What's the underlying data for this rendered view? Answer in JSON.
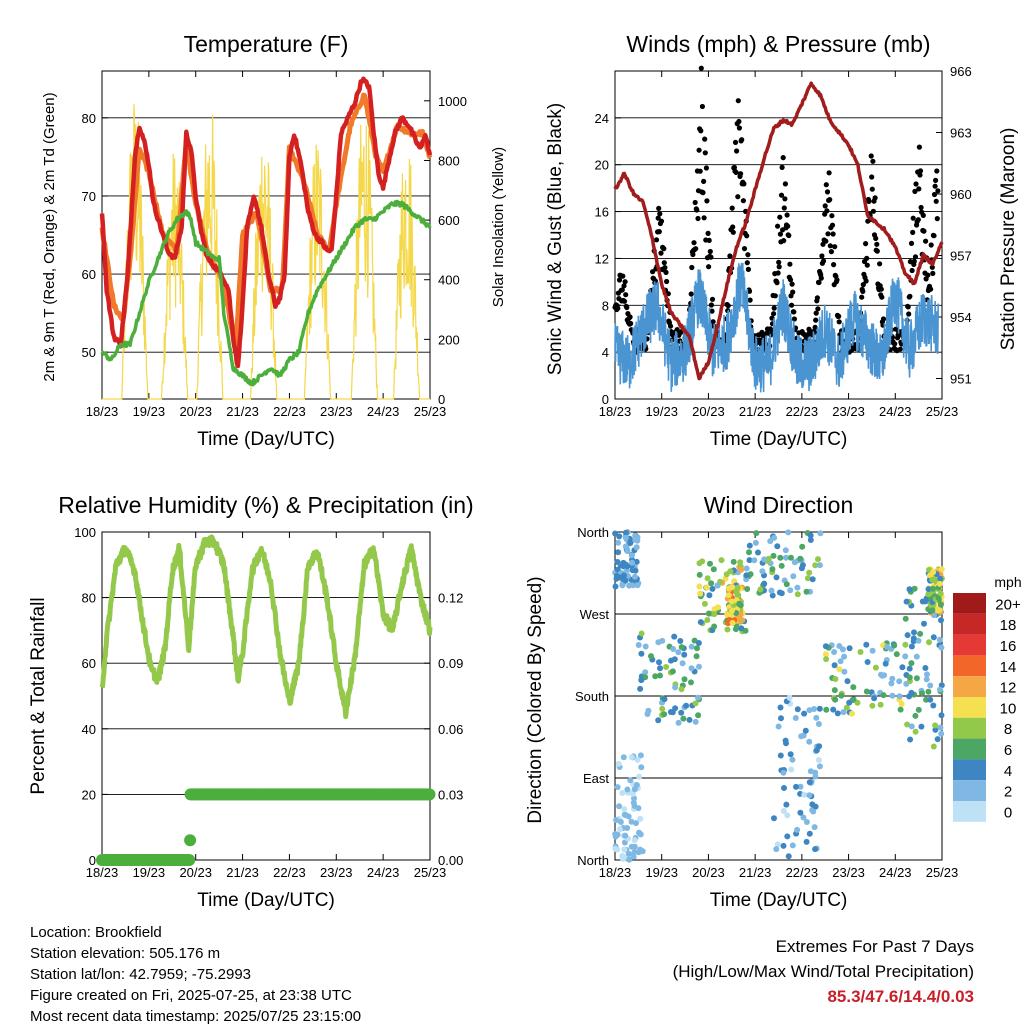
{
  "chart_data": [
    {
      "type": "line",
      "title": "Temperature (F)",
      "xlabel": "Time (Day/UTC)",
      "ylabel": "2m & 9m T (Red, Orange) & 2m Td (Green)",
      "y2label": "Solar Insolation (Yellow)",
      "x_ticks": [
        "18/23",
        "19/23",
        "20/23",
        "21/23",
        "22/23",
        "23/23",
        "24/23",
        "25/23"
      ],
      "ylim": [
        44,
        86
      ],
      "y_ticks": [
        50,
        60,
        70,
        80
      ],
      "y2lim": [
        0,
        1100
      ],
      "y2_ticks": [
        0,
        200,
        400,
        600,
        800,
        1000
      ],
      "grid": true,
      "series": [
        {
          "role": "2m T",
          "color": "#d42020",
          "axis": "left",
          "x": [
            0,
            0.1,
            0.25,
            0.4,
            0.55,
            0.7,
            0.8,
            0.9,
            1.0,
            1.1,
            1.25,
            1.4,
            1.55,
            1.7,
            1.8,
            1.9,
            2.0,
            2.1,
            2.25,
            2.4,
            2.55,
            2.7,
            2.8,
            2.9,
            3.0,
            3.1,
            3.25,
            3.4,
            3.55,
            3.7,
            3.8,
            3.9,
            4.0,
            4.1,
            4.25,
            4.4,
            4.55,
            4.7,
            4.8,
            4.9,
            5.0,
            5.1,
            5.25,
            5.4,
            5.55,
            5.7,
            5.8,
            5.9,
            6.0,
            6.1,
            6.25,
            6.4,
            6.55,
            6.7,
            6.8,
            6.9,
            7.0
          ],
          "y": [
            68,
            58,
            52,
            51,
            60,
            75,
            79,
            77,
            74,
            69,
            66,
            63,
            62,
            66,
            78,
            76,
            70,
            66,
            62,
            61,
            60,
            58,
            52,
            48,
            56,
            66,
            70,
            66,
            60,
            56,
            57,
            60,
            75,
            78,
            74,
            68,
            65,
            64,
            63,
            63,
            70,
            78,
            80,
            82,
            85,
            84,
            78,
            73,
            71,
            74,
            78,
            80,
            79,
            77,
            76,
            78,
            75
          ]
        },
        {
          "role": "9m T",
          "color": "#f07a2a",
          "axis": "left",
          "x": [
            0,
            0.25,
            0.45,
            0.6,
            0.8,
            1.0,
            1.3,
            1.6,
            1.8,
            2.0,
            2.3,
            2.6,
            2.85,
            3.0,
            3.3,
            3.6,
            3.85,
            4.0,
            4.3,
            4.6,
            4.85,
            5.0,
            5.3,
            5.6,
            5.85,
            6.0,
            6.3,
            6.6,
            6.85,
            7.0
          ],
          "y": [
            66,
            56,
            54,
            62,
            76,
            73,
            65,
            63,
            77,
            69,
            62,
            59,
            50,
            65,
            68,
            58,
            58,
            76,
            72,
            65,
            63,
            69,
            79,
            83,
            75,
            73,
            79,
            78,
            78,
            75
          ]
        },
        {
          "role": "2m Td",
          "color": "#4caf3c",
          "axis": "left",
          "x": [
            0,
            0.2,
            0.4,
            0.6,
            0.8,
            1.0,
            1.2,
            1.4,
            1.6,
            1.8,
            1.9,
            2.0,
            2.2,
            2.4,
            2.5,
            2.6,
            2.8,
            3.0,
            3.2,
            3.4,
            3.6,
            3.8,
            4.0,
            4.2,
            4.4,
            4.6,
            4.8,
            5.0,
            5.2,
            5.4,
            5.6,
            5.8,
            6.0,
            6.2,
            6.4,
            6.6,
            6.8,
            7.0
          ],
          "y": [
            50,
            49,
            51,
            51,
            55,
            59,
            62,
            65,
            67,
            68,
            67,
            64,
            63,
            62,
            62,
            55,
            48,
            47,
            46,
            47,
            48,
            47,
            49,
            50,
            55,
            58,
            60,
            62,
            64,
            66,
            67,
            67,
            68,
            69,
            69,
            68,
            67,
            66
          ]
        },
        {
          "role": "Solar Insolation",
          "color": "#f5d84a",
          "axis": "right",
          "peaks_x": [
            0.7,
            1.55,
            2.3,
            3.45,
            4.6,
            5.6,
            6.5
          ],
          "peaks_y": [
            1050,
            860,
            1030,
            980,
            920,
            1040,
            950
          ]
        }
      ]
    },
    {
      "type": "line",
      "title": "Winds (mph) & Pressure (mb)",
      "xlabel": "Time (Day/UTC)",
      "ylabel": "Sonic Wind & Gust (Blue, Black)",
      "y2label": "Station Pressure (Maroon)",
      "x_ticks": [
        "18/23",
        "19/23",
        "20/23",
        "21/23",
        "22/23",
        "23/23",
        "24/23",
        "25/23"
      ],
      "ylim": [
        0,
        28
      ],
      "y_ticks": [
        0,
        4,
        8,
        12,
        16,
        20,
        24
      ],
      "y2lim": [
        950,
        966
      ],
      "y2_ticks": [
        951,
        954,
        957,
        960,
        963,
        966
      ],
      "grid": true,
      "series": [
        {
          "role": "Station Pressure",
          "color": "#a11c1c",
          "axis": "right",
          "x": [
            0,
            0.2,
            0.4,
            0.6,
            0.8,
            1.0,
            1.2,
            1.4,
            1.6,
            1.8,
            2.0,
            2.2,
            2.4,
            2.6,
            2.8,
            3.0,
            3.2,
            3.4,
            3.6,
            3.8,
            4.0,
            4.2,
            4.4,
            4.6,
            4.8,
            5.0,
            5.2,
            5.4,
            5.6,
            5.8,
            6.0,
            6.2,
            6.4,
            6.6,
            6.8,
            7.0
          ],
          "y": [
            960.2,
            961.0,
            960.0,
            959.6,
            957.8,
            955.6,
            954.2,
            953.6,
            953.0,
            951.0,
            951.8,
            953.6,
            955.6,
            957.4,
            958.6,
            960.2,
            961.8,
            963.2,
            963.6,
            963.4,
            964.4,
            965.4,
            964.8,
            963.6,
            963.0,
            962.4,
            961.4,
            959.0,
            958.6,
            958.2,
            957.4,
            956.2,
            955.6,
            957.0,
            956.6,
            957.6
          ]
        },
        {
          "role": "Wind",
          "color": "#4b94d2",
          "axis": "left",
          "x": [
            0,
            0.3,
            0.6,
            0.9,
            1.2,
            1.5,
            1.8,
            2.1,
            2.4,
            2.7,
            3.0,
            3.3,
            3.6,
            3.9,
            4.2,
            4.5,
            4.8,
            5.1,
            5.4,
            5.7,
            6.0,
            6.3,
            6.6,
            6.9
          ],
          "y": [
            4,
            3,
            6,
            8,
            3,
            4,
            9,
            4,
            5,
            10,
            3,
            3,
            8,
            3,
            3,
            6,
            3,
            7,
            5,
            3,
            9,
            4,
            7,
            6
          ]
        },
        {
          "role": "Gust",
          "color": "#000000",
          "axis": "left",
          "peaks_x": [
            0.15,
            0.95,
            1.85,
            2.65,
            3.6,
            4.55,
            5.5,
            6.5,
            6.9
          ],
          "peaks_y": [
            8,
            14,
            25,
            25,
            18,
            19,
            18,
            19,
            17
          ]
        }
      ]
    },
    {
      "type": "line",
      "title": "Relative Humidity (%) & Precipitation (in)",
      "xlabel": "Time (Day/UTC)",
      "ylabel": "Percent & Total Rainfall",
      "x_ticks": [
        "18/23",
        "19/23",
        "20/23",
        "21/23",
        "22/23",
        "23/23",
        "24/23",
        "25/23"
      ],
      "ylim": [
        0,
        100
      ],
      "y_ticks": [
        0,
        20,
        40,
        60,
        80,
        100
      ],
      "y2lim": [
        0,
        0.15
      ],
      "y2_ticks": [
        "0.00",
        "0.03",
        "0.06",
        "0.09",
        "0.12"
      ],
      "grid": true,
      "series": [
        {
          "role": "Relative Humidity",
          "color": "#93c84a",
          "axis": "left",
          "x": [
            0,
            0.1,
            0.3,
            0.5,
            0.7,
            0.9,
            1.05,
            1.2,
            1.35,
            1.5,
            1.65,
            1.75,
            1.85,
            2.0,
            2.2,
            2.4,
            2.6,
            2.8,
            2.9,
            3.0,
            3.2,
            3.4,
            3.6,
            3.8,
            4.0,
            4.2,
            4.4,
            4.6,
            4.8,
            5.0,
            5.2,
            5.4,
            5.6,
            5.8,
            6.0,
            6.2,
            6.4,
            6.6,
            6.8,
            7.0
          ],
          "y": [
            52,
            68,
            90,
            95,
            88,
            70,
            58,
            55,
            65,
            88,
            95,
            80,
            65,
            90,
            97,
            97,
            90,
            68,
            55,
            63,
            88,
            95,
            85,
            63,
            48,
            60,
            90,
            94,
            80,
            60,
            45,
            62,
            90,
            95,
            75,
            70,
            84,
            95,
            80,
            70
          ]
        },
        {
          "role": "Total Precipitation",
          "color": "#4caf3c",
          "axis": "right",
          "x": [
            0,
            0.5,
            1.0,
            1.5,
            1.85,
            1.9,
            2.0,
            3.0,
            4.0,
            5.0,
            6.0,
            7.0
          ],
          "y": [
            0.0,
            0.0,
            0.0,
            0.0,
            0.0,
            0.03,
            0.03,
            0.03,
            0.03,
            0.03,
            0.03,
            0.03
          ]
        }
      ]
    },
    {
      "type": "scatter",
      "title": "Wind Direction",
      "xlabel": "Time (Day/UTC)",
      "ylabel": "Direction (Colored By Speed)",
      "x_ticks": [
        "18/23",
        "19/23",
        "20/23",
        "21/23",
        "22/23",
        "23/23",
        "24/23",
        "25/23"
      ],
      "y_ticks": [
        "North",
        "East",
        "South",
        "West",
        "North"
      ],
      "ylim": [
        0,
        360
      ],
      "grid": true,
      "colorbar": {
        "title": "mph",
        "labels": [
          "20+",
          "18",
          "16",
          "14",
          "12",
          "10",
          "8",
          "6",
          "4",
          "2",
          "0"
        ],
        "colors": [
          "#a01a1a",
          "#c62828",
          "#e53935",
          "#f2662a",
          "#f6a745",
          "#f5e051",
          "#92c94b",
          "#4ca664",
          "#3e86c2",
          "#7fb8e3",
          "#bfe1f6"
        ]
      },
      "clusters": [
        {
          "x": [
            0.0,
            0.5
          ],
          "y": [
            300,
            360
          ],
          "speed": [
            1,
            5
          ]
        },
        {
          "x": [
            0.5,
            1.8
          ],
          "y": [
            150,
            250
          ],
          "speed": [
            1,
            8
          ]
        },
        {
          "x": [
            1.8,
            2.8
          ],
          "y": [
            250,
            330
          ],
          "speed": [
            2,
            12
          ]
        },
        {
          "x": [
            2.4,
            2.7
          ],
          "y": [
            260,
            300
          ],
          "speed": [
            6,
            14
          ]
        },
        {
          "x": [
            2.8,
            4.4
          ],
          "y": [
            290,
            360
          ],
          "speed": [
            1,
            8
          ]
        },
        {
          "x": [
            3.4,
            4.4
          ],
          "y": [
            0,
            180
          ],
          "speed": [
            0,
            5
          ]
        },
        {
          "x": [
            4.5,
            6.2
          ],
          "y": [
            160,
            240
          ],
          "speed": [
            1,
            10
          ]
        },
        {
          "x": [
            6.2,
            7.0
          ],
          "y": [
            120,
            300
          ],
          "speed": [
            1,
            8
          ]
        },
        {
          "x": [
            6.7,
            7.0
          ],
          "y": [
            270,
            320
          ],
          "speed": [
            4,
            12
          ]
        },
        {
          "x": [
            0.0,
            0.6
          ],
          "y": [
            0,
            120
          ],
          "speed": [
            0,
            3
          ]
        }
      ]
    }
  ],
  "footer": {
    "location": "Location: Brookfield",
    "elevation": "Station elevation: 505.176 m",
    "latlon": "Station lat/lon: 42.7959; -75.2993",
    "created": "Figure created on Fri, 2025-07-25, at 23:38 UTC",
    "recent": "Most recent data timestamp: 2025/07/25 23:15:00",
    "extremes_title": "Extremes For Past 7 Days",
    "extremes_sub": "(High/Low/Max Wind/Total Precipitation)",
    "extremes_values": "85.3/47.6/14.4/0.03"
  }
}
